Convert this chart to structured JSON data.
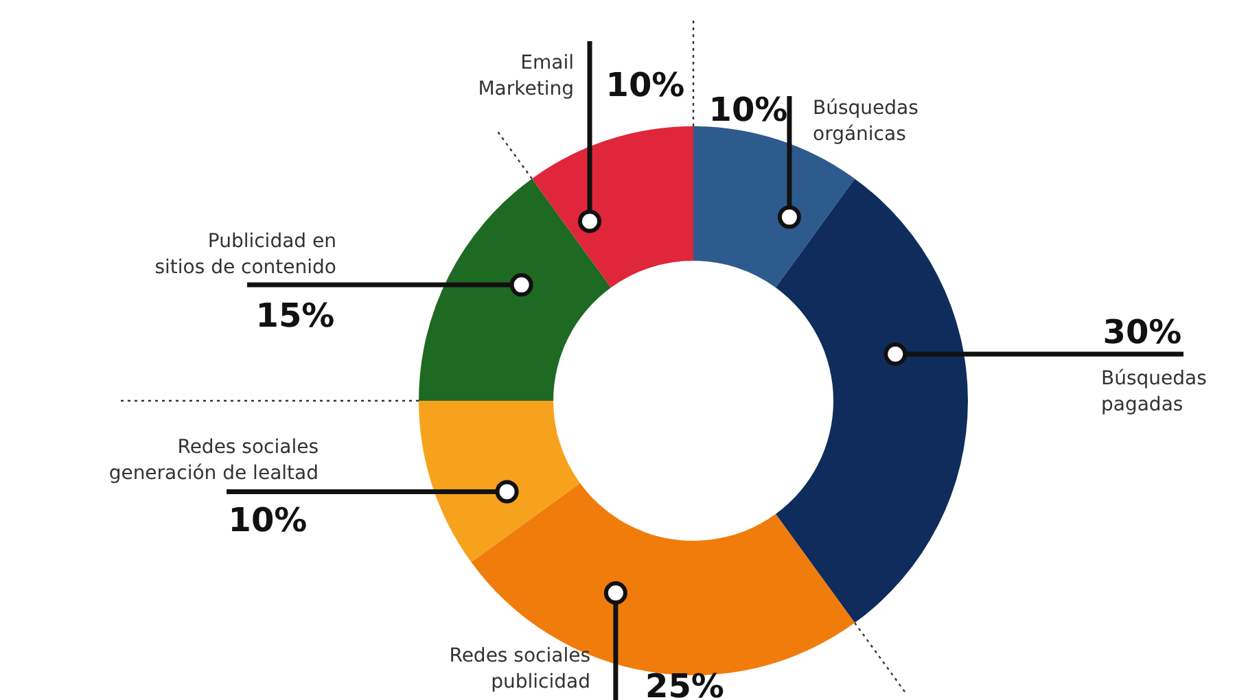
{
  "chart_data": {
    "type": "donut",
    "categories": [
      "Búsquedas orgánicas",
      "Búsquedas pagadas",
      "Redes sociales publicidad",
      "Redes sociales generación de lealtad",
      "Publicidad en sitios de contenido",
      "Email Marketing"
    ],
    "values": [
      10,
      30,
      25,
      10,
      15,
      10
    ],
    "colors": [
      "#2e5b8e",
      "#0f2c5c",
      "#f07c0c",
      "#f7a21c",
      "#1e6a22",
      "#e0263a"
    ],
    "value_labels": [
      "10%",
      "30%",
      "25%",
      "10%",
      "15%",
      "10%"
    ]
  }
}
